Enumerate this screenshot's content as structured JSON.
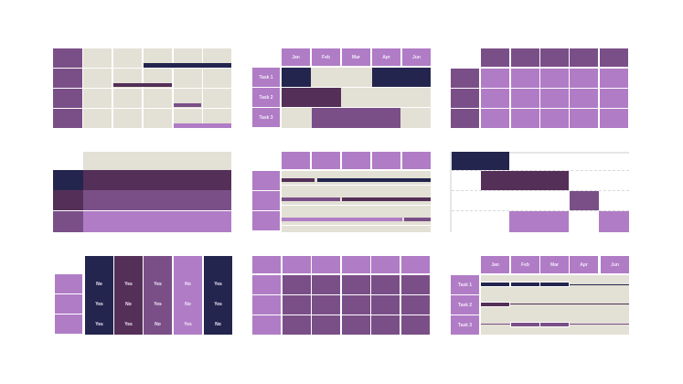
{
  "palette": {
    "navy": "#23254f",
    "dark_purple": "#542f58",
    "mid_purple": "#7a4f88",
    "lavender": "#b07cc6",
    "beige": "#e3e0d5",
    "axis": "#e6e6e6"
  },
  "gantt_month_headers": {
    "months": [
      "Jan",
      "Feb",
      "Mar",
      "Apr",
      "Jun"
    ]
  },
  "gantt_task_labels": {
    "tasks": [
      "Task 1",
      "Task 2",
      "Task 3"
    ]
  },
  "yes_no_matrix": {
    "rows": [
      [
        "No",
        "Yes",
        "Yes",
        "No",
        "Yes"
      ],
      [
        "Yes",
        "No",
        "Yes",
        "No",
        "Yes"
      ],
      [
        "Yes",
        "Yes",
        "No",
        "Yes",
        "No"
      ]
    ]
  }
}
